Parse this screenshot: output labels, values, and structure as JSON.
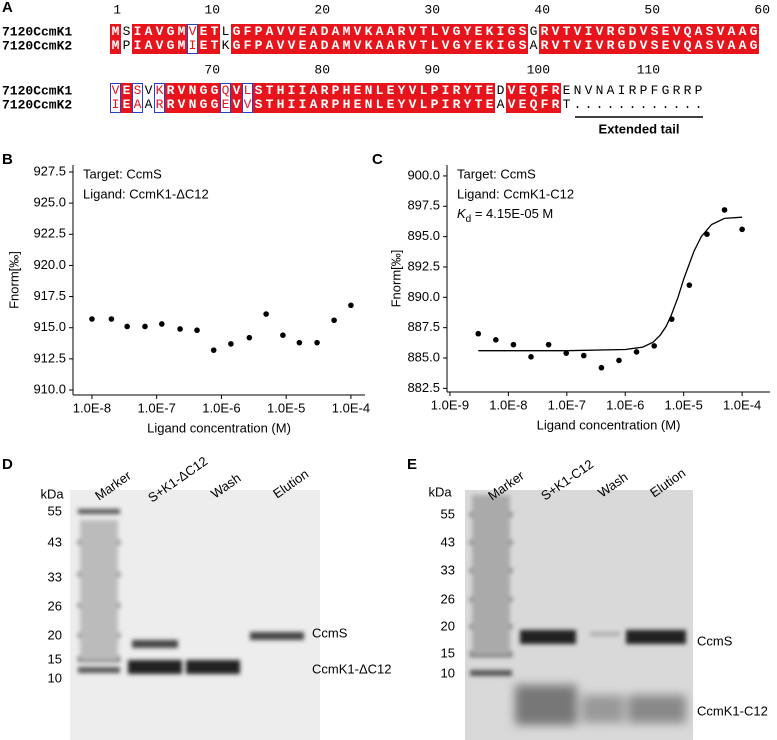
{
  "figure": {
    "panel_labels": [
      "A",
      "B",
      "C",
      "D",
      "E"
    ]
  },
  "alignment": {
    "blocks": [
      {
        "numbers": [
          "1",
          "10",
          "20",
          "30",
          "40",
          "50",
          "60"
        ],
        "rows": [
          {
            "name": "7120CcmK1",
            "sequence": "MSIAVGMVETLGFPAVVEADAMVKAARVTLVGYEKIGSGRVTVIVRGDVSEVQASVAAG"
          },
          {
            "name": "7120CcmK2",
            "sequence": "MPIAVGMIETKGFPAVVEADAMVKAARVTLVGYEKIGSARVTVIVRGDVSEVQASVAAG"
          }
        ]
      },
      {
        "numbers": [
          "70",
          "80",
          "90",
          "100",
          "110"
        ],
        "rows": [
          {
            "name": "7120CcmK1",
            "sequence": "VESVKRVNGGQVLSTHIIARPHENLEYVLPIRYTEDVEQFRENVNAIRPFGRRP"
          },
          {
            "name": "7120CcmK2",
            "sequence": "IEAARRVNGGEVVSTHIIARPHENLEYVLPIRYTEAVEQFRT............"
          }
        ]
      }
    ],
    "tail_label": "Extended tail"
  },
  "chart_data": [
    {
      "type": "scatter",
      "xscale": "log",
      "ylabel": "Fnorm[‰]",
      "xlabel": "Ligand concentration (M)",
      "annotations": [
        "Target: CcmS",
        "Ligand: CcmK1-ΔC12"
      ],
      "xlim": [
        5.1e-09,
        0.000165
      ],
      "xticks": [
        {
          "value": 1e-08,
          "label": "1.0E-8"
        },
        {
          "value": 1e-07,
          "label": "1.0E-7"
        },
        {
          "value": 1e-06,
          "label": "1.0E-6"
        },
        {
          "value": 1e-05,
          "label": "1.0E-5"
        },
        {
          "value": 0.0001,
          "label": "1.0E-4"
        }
      ],
      "ylim": [
        909.6,
        928.06
      ],
      "yticks": [
        {
          "value": 910,
          "label": "910.0"
        },
        912.5,
        {
          "value": 915,
          "label": "915.0"
        },
        917.5,
        {
          "value": 920,
          "label": "920.0"
        },
        922.5,
        {
          "value": 925,
          "label": "925.0"
        },
        927.5
      ],
      "series": [
        {
          "style": "markers",
          "color": "#000000",
          "x": [
            1e-08,
            2e-08,
            3.5e-08,
            6.6e-08,
            1.2e-07,
            2.3e-07,
            4.2e-07,
            7.6e-07,
            1.4e-06,
            2.7e-06,
            4.9e-06,
            8.9e-06,
            1.6e-05,
            3e-05,
            5.5e-05,
            0.0001
          ],
          "values": [
            915.7,
            915.7,
            915.1,
            915.1,
            915.3,
            914.9,
            914.8,
            913.2,
            913.7,
            914.2,
            916.1,
            914.4,
            913.8,
            913.8,
            915.6,
            916.8
          ]
        }
      ]
    },
    {
      "type": "scatter",
      "xscale": "log",
      "ylabel": "Fnorm[‰]",
      "xlabel": "Ligand concentration (M)",
      "annotations": [
        "Target: CcmS",
        "Ligand: CcmK1-C12",
        {
          "symbol": "K",
          "subscript": "d",
          "text": " = 4.15E-05 M"
        }
      ],
      "xlim": [
        8.9e-10,
        0.0003
      ],
      "xticks": [
        {
          "value": 1e-09,
          "label": "1.0E-9"
        },
        {
          "value": 1e-08,
          "label": "1.0E-8"
        },
        {
          "value": 1e-07,
          "label": "1.0E-7"
        },
        {
          "value": 1e-06,
          "label": "1.0E-6"
        },
        {
          "value": 1e-05,
          "label": "1.0E-5"
        },
        {
          "value": 0.0001,
          "label": "1.0E-4"
        }
      ],
      "ylim": [
        882.2,
        900.9
      ],
      "yticks": [
        882.5,
        {
          "value": 885,
          "label": "885.0"
        },
        887.5,
        {
          "value": 890,
          "label": "890.0"
        },
        892.5,
        {
          "value": 895,
          "label": "895.0"
        },
        897.5,
        {
          "value": 900,
          "label": "900.0"
        }
      ],
      "series": [
        {
          "style": "markers",
          "color": "#000000",
          "x": [
            3.05e-09,
            6.1e-09,
            1.22e-08,
            2.44e-08,
            4.88e-08,
            9.77e-08,
            1.95e-07,
            3.91e-07,
            7.81e-07,
            1.56e-06,
            3.13e-06,
            6.25e-06,
            1.25e-05,
            2.5e-05,
            5e-05,
            0.0001
          ],
          "values": [
            887.0,
            886.5,
            886.1,
            885.1,
            886.1,
            885.4,
            885.2,
            884.2,
            884.8,
            885.5,
            886.0,
            888.2,
            891.0,
            895.2,
            897.2,
            895.6
          ]
        },
        {
          "style": "line",
          "color": "#000000",
          "x": [
            3.05e-09,
            1e-08,
            1e-07,
            1e-06,
            2e-06,
            3e-06,
            4e-06,
            5e-06,
            6e-06,
            8e-06,
            1e-05,
            1.5e-05,
            2e-05,
            3e-05,
            5e-05,
            0.0001
          ],
          "values": [
            885.6,
            885.6,
            885.6,
            885.7,
            885.9,
            886.3,
            886.9,
            887.6,
            888.4,
            890.0,
            891.5,
            893.8,
            895.0,
            896.0,
            896.5,
            896.6
          ]
        }
      ]
    }
  ],
  "gels": [
    {
      "unit": "kDa",
      "markers": [
        "55",
        "43",
        "33",
        "26",
        "20",
        "15",
        "10"
      ],
      "lanes": [
        "Marker",
        "S+K1-ΔC12",
        "Wash",
        "Elution"
      ],
      "bands": [
        "CcmS",
        "CcmK1-ΔC12"
      ]
    },
    {
      "unit": "kDa",
      "markers": [
        "55",
        "43",
        "33",
        "26",
        "20",
        "15",
        "10"
      ],
      "lanes": [
        "Marker",
        "S+K1-C12",
        "Wash",
        "Elution"
      ],
      "bands": [
        "CcmS",
        "CcmK1-C12"
      ]
    }
  ]
}
